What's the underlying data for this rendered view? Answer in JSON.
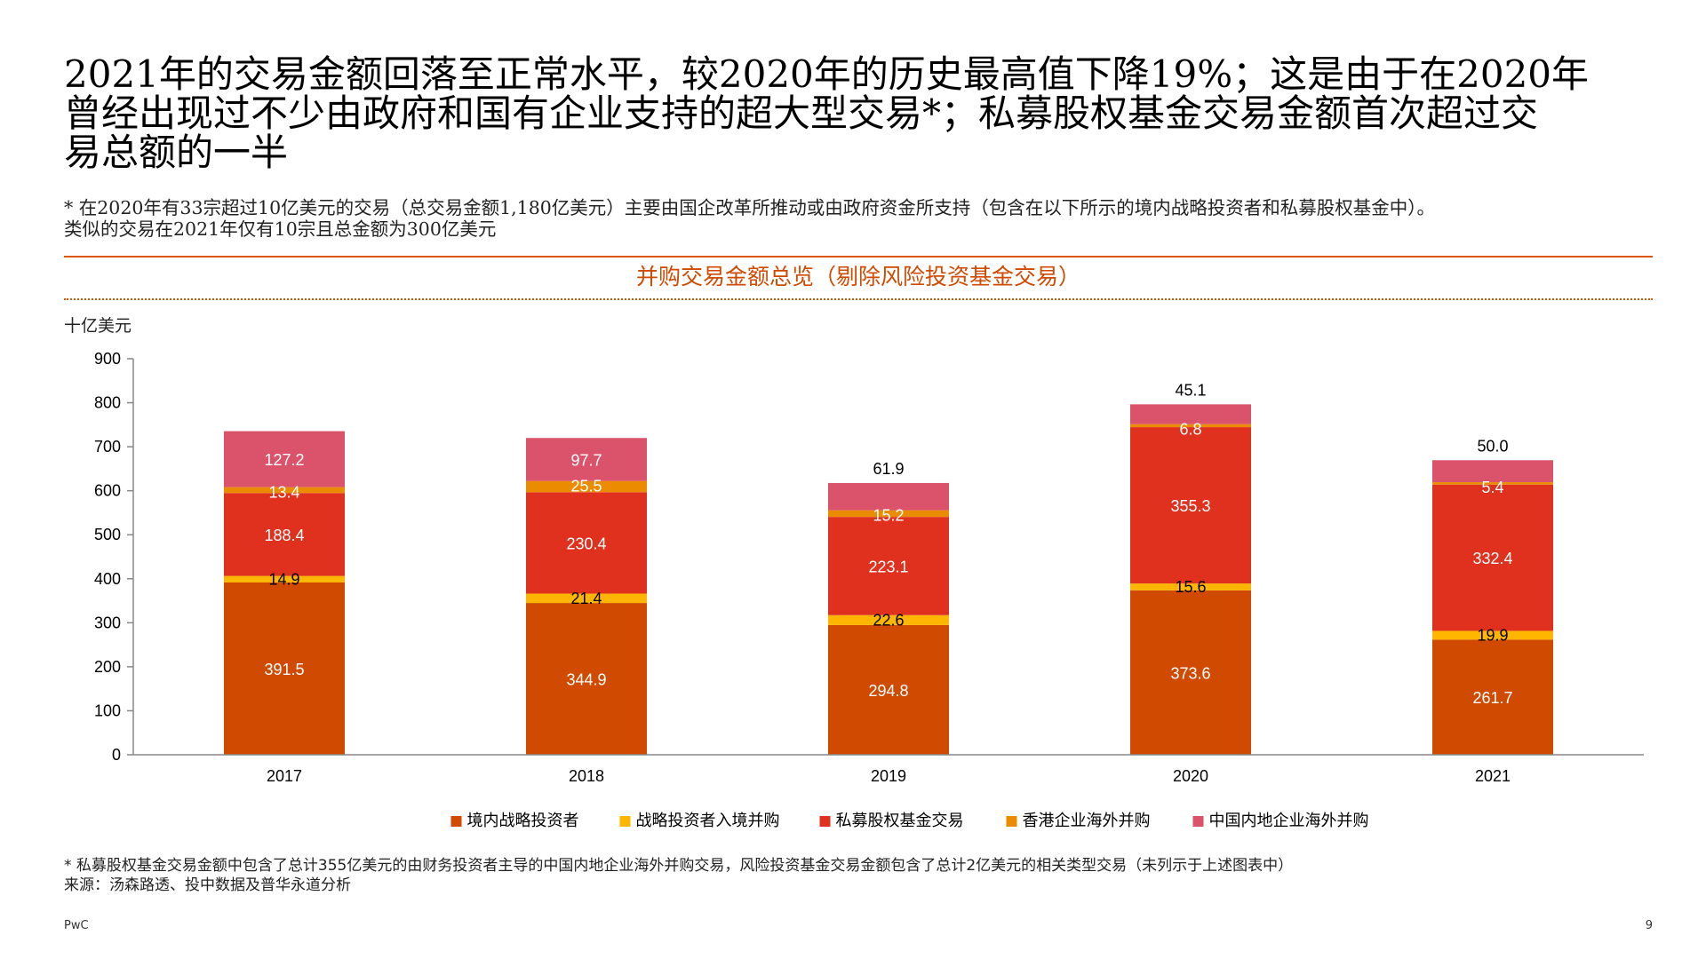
{
  "headline": {
    "line1": "2021年的交易金额回落至正常水平，较2020年的历史最高值下降19%；这是由于在2020年",
    "line2": "曾经出现过不少由政府和国有企业支持的超大型交易*；私募股权基金交易金额首次超过交",
    "line3": "易总额的一半"
  },
  "note_top": {
    "line1": "* 在2020年有33宗超过10亿美元的交易（总交易金额1,180亿美元）主要由国企改革所推动或由政府资金所支持（包含在以下所示的境内战略投资者和私募股权基金中）。",
    "line2": "类似的交易在2021年仅有10宗且总金额为300亿美元"
  },
  "chart_title": "并购交易金额总览（剔除风险投资基金交易）",
  "unit_label": "十亿美元",
  "chart_data": {
    "type": "bar",
    "stacked": true,
    "title": "并购交易金额总览（剔除风险投资基金交易）",
    "ylabel": "十亿美元",
    "ylim": [
      0,
      900
    ],
    "yticks": [
      "0",
      "100",
      "200",
      "300",
      "400",
      "500",
      "600",
      "700",
      "800",
      "900"
    ],
    "categories": [
      "2017",
      "2018",
      "2019",
      "2020",
      "2021"
    ],
    "legend_position": "bottom",
    "series": [
      {
        "name": "境内战略投资者",
        "color": "#d04a02",
        "label_color": "#ffffff",
        "values": [
          391.5,
          344.9,
          294.8,
          373.6,
          261.7
        ],
        "labels": [
          "391.5",
          "344.9",
          "294.8",
          "373.6",
          "261.7"
        ]
      },
      {
        "name": "战略投资者入境并购",
        "color": "#ffb600",
        "label_color": "#000000",
        "values": [
          14.9,
          21.4,
          22.6,
          15.6,
          19.9
        ],
        "labels": [
          "14.9",
          "21.4",
          "22.6",
          "15.6",
          "19.9"
        ]
      },
      {
        "name": "私募股权基金交易",
        "color": "#e0301e",
        "label_color": "#ffffff",
        "values": [
          188.4,
          230.4,
          223.1,
          355.3,
          332.4
        ],
        "labels": [
          "188.4",
          "230.4",
          "223.1",
          "355.3",
          "332.4"
        ]
      },
      {
        "name": "香港企业海外并购",
        "color": "#eb8c00",
        "label_color": "#ffffff",
        "values": [
          13.4,
          25.5,
          15.2,
          6.8,
          5.4
        ],
        "labels": [
          "13.4",
          "25.5",
          "15.2",
          "6.8",
          "5.4"
        ]
      },
      {
        "name": "中国内地企业海外并购",
        "color": "#db536a",
        "label_color": "#ffffff",
        "values": [
          127.2,
          97.7,
          61.9,
          45.1,
          50.0
        ],
        "labels": [
          "127.2",
          "97.7",
          "61.9",
          "45.1",
          "50.0"
        ]
      }
    ]
  },
  "footnote": {
    "line1": "* 私募股权基金交易金额中包含了总计355亿美元的由财务投资者主导的中国内地企业海外并购交易，风险投资基金交易金额包含了总计2亿美元的相关类型交易（未列示于上述图表中）",
    "line2": "来源：汤森路透、投中数据及普华永道分析"
  },
  "brand": "PwC",
  "page_number": "9"
}
